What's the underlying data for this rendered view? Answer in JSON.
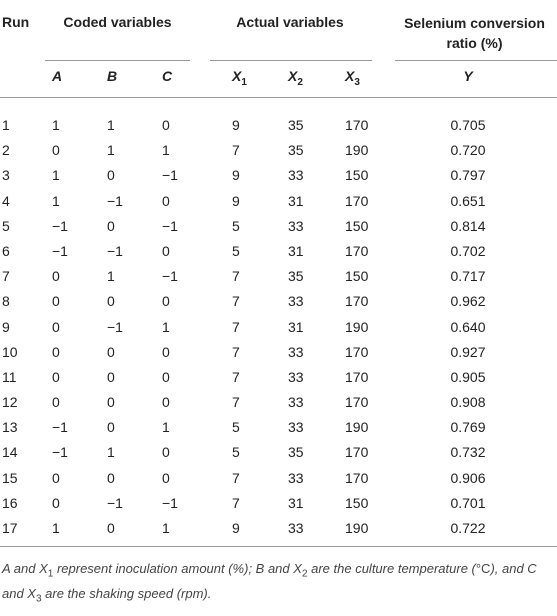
{
  "table": {
    "header": [
      "Run",
      "Coded variables",
      "Actual variables",
      "Selenium conversion ratio (%)"
    ],
    "subheader": [
      {
        "main": "A",
        "sub": ""
      },
      {
        "main": "B",
        "sub": ""
      },
      {
        "main": "C",
        "sub": ""
      },
      {
        "main": "X",
        "sub": "1"
      },
      {
        "main": "X",
        "sub": "2"
      },
      {
        "main": "X",
        "sub": "3"
      },
      {
        "main": "Y",
        "sub": ""
      }
    ],
    "rows": [
      [
        "1",
        "1",
        "1",
        "0",
        "9",
        "35",
        "170",
        "0.705"
      ],
      [
        "2",
        "0",
        "1",
        "1",
        "7",
        "35",
        "190",
        "0.720"
      ],
      [
        "3",
        "1",
        "0",
        "−1",
        "9",
        "33",
        "150",
        "0.797"
      ],
      [
        "4",
        "1",
        "−1",
        "0",
        "9",
        "31",
        "170",
        "0.651"
      ],
      [
        "5",
        "−1",
        "0",
        "−1",
        "5",
        "33",
        "150",
        "0.814"
      ],
      [
        "6",
        "−1",
        "−1",
        "0",
        "5",
        "31",
        "170",
        "0.702"
      ],
      [
        "7",
        "0",
        "1",
        "−1",
        "7",
        "35",
        "150",
        "0.717"
      ],
      [
        "8",
        "0",
        "0",
        "0",
        "7",
        "33",
        "170",
        "0.962"
      ],
      [
        "9",
        "0",
        "−1",
        "1",
        "7",
        "31",
        "190",
        "0.640"
      ],
      [
        "10",
        "0",
        "0",
        "0",
        "7",
        "33",
        "170",
        "0.927"
      ],
      [
        "11",
        "0",
        "0",
        "0",
        "7",
        "33",
        "170",
        "0.905"
      ],
      [
        "12",
        "0",
        "0",
        "0",
        "7",
        "33",
        "170",
        "0.908"
      ],
      [
        "13",
        "−1",
        "0",
        "1",
        "5",
        "33",
        "190",
        "0.769"
      ],
      [
        "14",
        "−1",
        "1",
        "0",
        "5",
        "35",
        "170",
        "0.732"
      ],
      [
        "15",
        "0",
        "0",
        "0",
        "7",
        "33",
        "170",
        "0.906"
      ],
      [
        "16",
        "0",
        "−1",
        "−1",
        "7",
        "31",
        "150",
        "0.701"
      ],
      [
        "17",
        "1",
        "0",
        "1",
        "9",
        "33",
        "190",
        "0.722"
      ]
    ],
    "footnote": [
      {
        "text": "A and X",
        "style": "italic"
      },
      {
        "text": "1",
        "style": "sub"
      },
      {
        "text": " represent inoculation amount (%); B and X",
        "style": "italic"
      },
      {
        "text": "2",
        "style": "sub"
      },
      {
        "text": " are the culture temperature (",
        "style": "italic"
      },
      {
        "text": "°C",
        "style": "normal"
      },
      {
        "text": "), and C and X",
        "style": "italic"
      },
      {
        "text": "3",
        "style": "sub"
      },
      {
        "text": " are the shaking speed (rpm).",
        "style": "italic"
      }
    ]
  }
}
